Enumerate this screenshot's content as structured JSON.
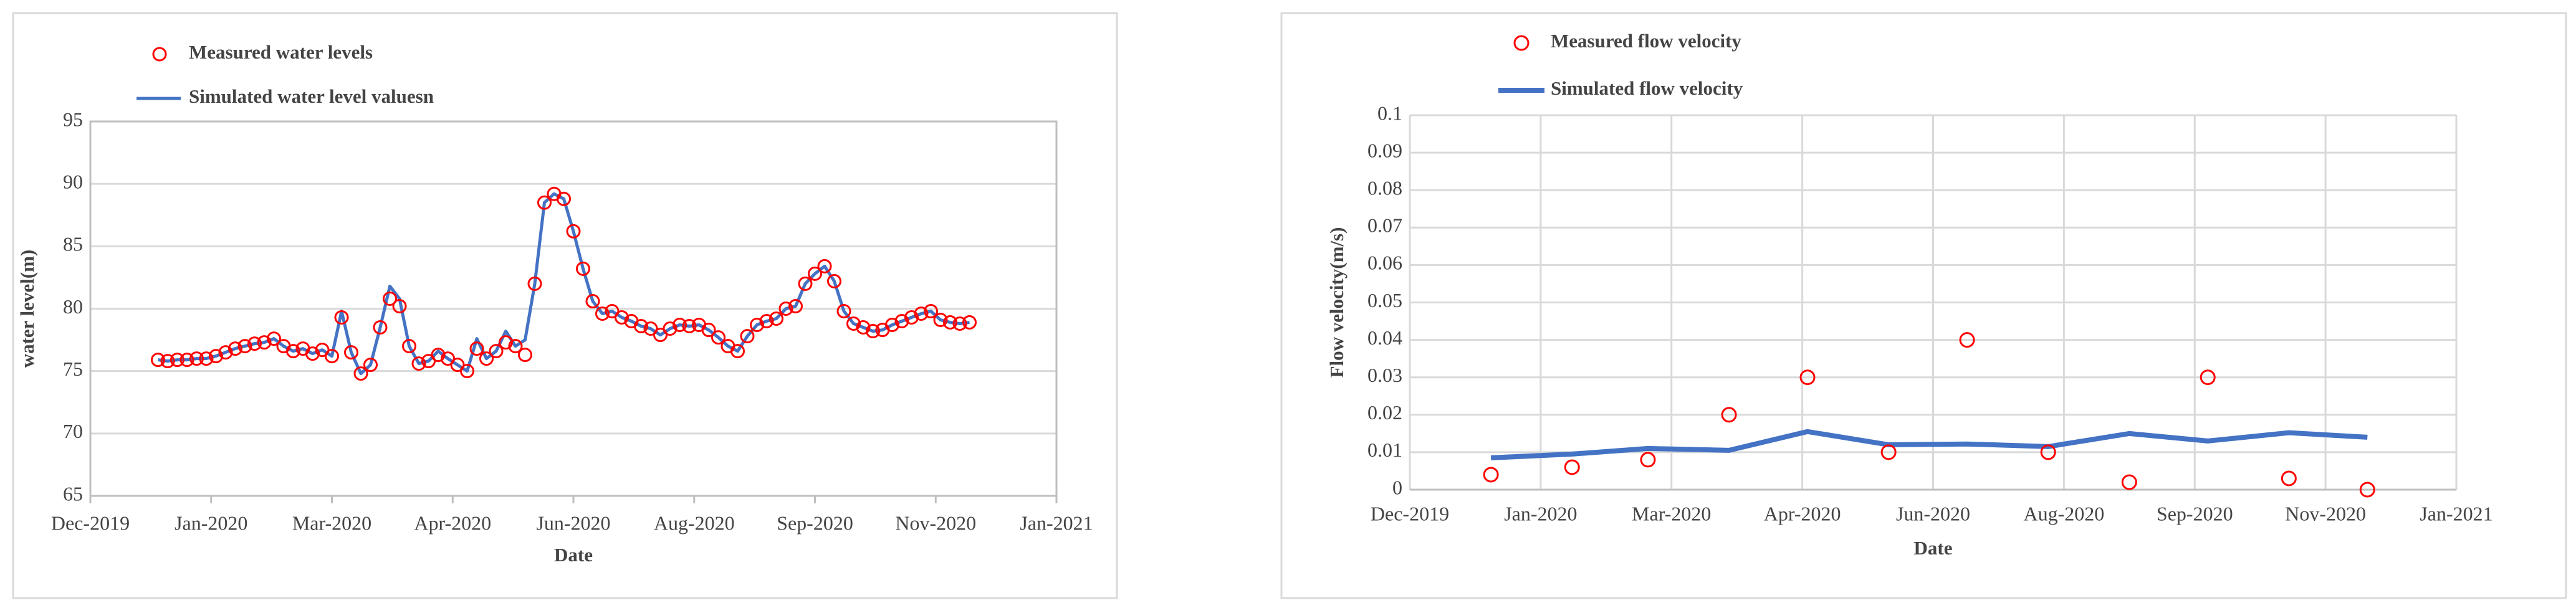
{
  "chart_data": [
    {
      "type": "line",
      "x_label": "Date",
      "y_label": "water level(m)",
      "xlim": [
        "2019-12-01",
        "2021-01-04"
      ],
      "xticks": [
        {
          "value": "2019-12-01",
          "label": "Dec-2019"
        },
        {
          "value": "2020-01-20",
          "label": "Jan-2020"
        },
        {
          "value": "2020-03-10",
          "label": "Mar-2020"
        },
        {
          "value": "2020-04-29",
          "label": "Apr-2020"
        },
        {
          "value": "2020-06-18",
          "label": "Jun-2020"
        },
        {
          "value": "2020-08-07",
          "label": "Aug-2020"
        },
        {
          "value": "2020-09-26",
          "label": "Sep-2020"
        },
        {
          "value": "2020-11-15",
          "label": "Nov-2020"
        },
        {
          "value": "2021-01-04",
          "label": "Jan-2021"
        }
      ],
      "ylim": [
        65,
        95
      ],
      "yticks": [
        65,
        70,
        75,
        80,
        85,
        90,
        95
      ],
      "grid": {
        "x": false,
        "y": true
      },
      "x": [
        "2019-12-29",
        "2020-01-02",
        "2020-01-06",
        "2020-01-10",
        "2020-01-14",
        "2020-01-18",
        "2020-01-22",
        "2020-01-26",
        "2020-01-30",
        "2020-02-03",
        "2020-02-07",
        "2020-02-11",
        "2020-02-15",
        "2020-02-19",
        "2020-02-23",
        "2020-02-27",
        "2020-03-02",
        "2020-03-06",
        "2020-03-10",
        "2020-03-14",
        "2020-03-18",
        "2020-03-22",
        "2020-03-26",
        "2020-03-30",
        "2020-04-03",
        "2020-04-07",
        "2020-04-11",
        "2020-04-15",
        "2020-04-19",
        "2020-04-23",
        "2020-04-27",
        "2020-05-01",
        "2020-05-05",
        "2020-05-09",
        "2020-05-13",
        "2020-05-17",
        "2020-05-21",
        "2020-05-25",
        "2020-05-29",
        "2020-06-02",
        "2020-06-06",
        "2020-06-10",
        "2020-06-14",
        "2020-06-18",
        "2020-06-22",
        "2020-06-26",
        "2020-06-30",
        "2020-07-04",
        "2020-07-08",
        "2020-07-12",
        "2020-07-16",
        "2020-07-20",
        "2020-07-24",
        "2020-07-28",
        "2020-08-01",
        "2020-08-05",
        "2020-08-09",
        "2020-08-13",
        "2020-08-17",
        "2020-08-21",
        "2020-08-25",
        "2020-08-29",
        "2020-09-02",
        "2020-09-06",
        "2020-09-10",
        "2020-09-14",
        "2020-09-18",
        "2020-09-22",
        "2020-09-26",
        "2020-09-30",
        "2020-10-04",
        "2020-10-08",
        "2020-10-12",
        "2020-10-16",
        "2020-10-20",
        "2020-10-24",
        "2020-10-28",
        "2020-11-01",
        "2020-11-05",
        "2020-11-09",
        "2020-11-13",
        "2020-11-17",
        "2020-11-21",
        "2020-11-25",
        "2020-11-29"
      ],
      "series": [
        {
          "name": "Measured water levels",
          "mode": "markers",
          "color": "#ff0000",
          "values": [
            75.9,
            75.8,
            75.9,
            75.9,
            76.0,
            76.0,
            76.2,
            76.5,
            76.8,
            77.0,
            77.2,
            77.3,
            77.6,
            77.0,
            76.6,
            76.8,
            76.4,
            76.7,
            76.2,
            79.3,
            76.5,
            74.8,
            75.5,
            78.5,
            80.8,
            80.2,
            77,
            75.6,
            75.8,
            76.3,
            76,
            75.5,
            75,
            76.8,
            76,
            76.6,
            77.3,
            77,
            76.3,
            82,
            88.5,
            89.2,
            88.8,
            86.2,
            83.2,
            80.6,
            79.6,
            79.8,
            79.3,
            79,
            78.6,
            78.4,
            77.9,
            78.4,
            78.7,
            78.6,
            78.7,
            78.3,
            77.7,
            77,
            76.6,
            77.8,
            78.7,
            79,
            79.2,
            80,
            80.2,
            82,
            82.8,
            83.4,
            82.2,
            79.8,
            78.8,
            78.5,
            78.2,
            78.3,
            78.7,
            79,
            79.3,
            79.6,
            79.8,
            79.1,
            78.9,
            78.8,
            78.9
          ]
        },
        {
          "name": "Simulated water level valuesn",
          "mode": "line",
          "color": "#4472c4",
          "values": [
            75.9,
            75.8,
            75.9,
            75.9,
            76.0,
            76.0,
            76.2,
            76.5,
            76.8,
            77.0,
            77.2,
            77.3,
            77.6,
            77.0,
            76.6,
            76.8,
            76.4,
            76.7,
            76.2,
            79.8,
            76.5,
            74.8,
            75.5,
            78.5,
            81.8,
            80.8,
            77,
            75.6,
            75.8,
            76.6,
            76,
            75.5,
            75,
            77.6,
            76,
            76.6,
            78.2,
            77,
            77.5,
            82,
            88.5,
            89.2,
            88.8,
            86.2,
            83.2,
            80.6,
            79.6,
            79.8,
            79.3,
            79,
            78.6,
            78.4,
            77.9,
            78.4,
            78.7,
            78.6,
            78.7,
            78.3,
            77.7,
            77,
            76.6,
            77.8,
            78.7,
            79,
            79.2,
            80,
            80.2,
            82,
            82.8,
            83.4,
            82.2,
            79.8,
            78.8,
            78.5,
            78.2,
            78.3,
            78.7,
            79,
            79.3,
            79.6,
            79.8,
            79.1,
            78.9,
            78.8,
            78.9
          ]
        }
      ]
    },
    {
      "type": "line",
      "x_label": "Date",
      "y_label": "Flow velocity(m/s)",
      "xlim": [
        "2019-12-01",
        "2021-01-04"
      ],
      "xticks": [
        {
          "value": "2019-12-01",
          "label": "Dec-2019"
        },
        {
          "value": "2020-01-20",
          "label": "Jan-2020"
        },
        {
          "value": "2020-03-10",
          "label": "Mar-2020"
        },
        {
          "value": "2020-04-29",
          "label": "Apr-2020"
        },
        {
          "value": "2020-06-18",
          "label": "Jun-2020"
        },
        {
          "value": "2020-08-07",
          "label": "Aug-2020"
        },
        {
          "value": "2020-09-26",
          "label": "Sep-2020"
        },
        {
          "value": "2020-11-15",
          "label": "Nov-2020"
        },
        {
          "value": "2021-01-04",
          "label": "Jan-2021"
        }
      ],
      "ylim": [
        0,
        0.1
      ],
      "yticks": [
        0,
        0.01,
        0.02,
        0.03,
        0.04,
        0.05,
        0.06,
        0.07,
        0.08,
        0.09,
        0.1
      ],
      "grid": {
        "x": true,
        "y": true
      },
      "x": [
        "2020-01-01",
        "2020-02-01",
        "2020-03-01",
        "2020-04-01",
        "2020-05-01",
        "2020-06-01",
        "2020-07-01",
        "2020-08-01",
        "2020-09-01",
        "2020-10-01",
        "2020-11-01",
        "2020-12-01"
      ],
      "series": [
        {
          "name": "Measured flow velocity",
          "mode": "markers",
          "color": "#ff0000",
          "values": [
            0.004,
            0.006,
            0.008,
            0.02,
            0.03,
            0.01,
            0.04,
            0.01,
            0.002,
            0.03,
            0.003,
            0
          ]
        },
        {
          "name": "Simulated flow velocity",
          "mode": "line",
          "color": "#4472c4",
          "values": [
            0.0085,
            0.0095,
            0.011,
            0.0105,
            0.0155,
            0.012,
            0.0122,
            0.0115,
            0.015,
            0.013,
            0.0152,
            0.014
          ]
        }
      ]
    }
  ]
}
